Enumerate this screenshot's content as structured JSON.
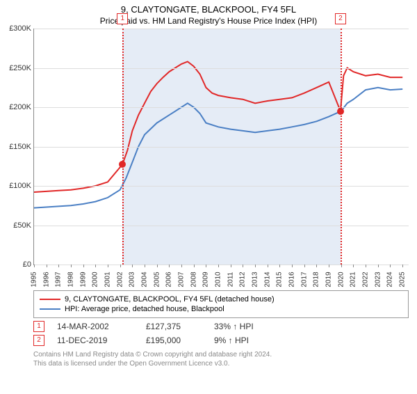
{
  "title": "9, CLAYTONGATE, BLACKPOOL, FY4 5FL",
  "subtitle": "Price paid vs. HM Land Registry's House Price Index (HPI)",
  "chart": {
    "type": "line",
    "x_range": [
      1995,
      2025.5
    ],
    "y_range": [
      0,
      300000
    ],
    "y_ticks": [
      0,
      50000,
      100000,
      150000,
      200000,
      250000,
      300000
    ],
    "y_labels": [
      "£0",
      "£50K",
      "£100K",
      "£150K",
      "£200K",
      "£250K",
      "£300K"
    ],
    "x_ticks": [
      1995,
      1996,
      1997,
      1998,
      1999,
      2000,
      2001,
      2002,
      2003,
      2004,
      2005,
      2006,
      2007,
      2008,
      2009,
      2010,
      2011,
      2012,
      2013,
      2014,
      2015,
      2016,
      2017,
      2018,
      2019,
      2020,
      2021,
      2022,
      2023,
      2024,
      2025
    ],
    "shade_range": [
      2002.2,
      2019.95
    ],
    "shade_color": "rgba(180,200,230,0.35)",
    "background_color": "#ffffff",
    "grid_color": "#dddddd",
    "axis_color": "#888888",
    "series": [
      {
        "name": "9, CLAYTONGATE, BLACKPOOL, FY4 5FL (detached house)",
        "color": "#e12727",
        "width": 2,
        "points": [
          [
            1995,
            92000
          ],
          [
            1996,
            93000
          ],
          [
            1997,
            94000
          ],
          [
            1998,
            95000
          ],
          [
            1999,
            97000
          ],
          [
            2000,
            100000
          ],
          [
            2001,
            105000
          ],
          [
            2002.2,
            127375
          ],
          [
            2002.6,
            145000
          ],
          [
            2003,
            170000
          ],
          [
            2003.5,
            190000
          ],
          [
            2004,
            205000
          ],
          [
            2004.5,
            220000
          ],
          [
            2005,
            230000
          ],
          [
            2005.5,
            238000
          ],
          [
            2006,
            245000
          ],
          [
            2006.5,
            250000
          ],
          [
            2007,
            255000
          ],
          [
            2007.5,
            258000
          ],
          [
            2008,
            252000
          ],
          [
            2008.5,
            242000
          ],
          [
            2009,
            225000
          ],
          [
            2009.5,
            218000
          ],
          [
            2010,
            215000
          ],
          [
            2011,
            212000
          ],
          [
            2012,
            210000
          ],
          [
            2013,
            205000
          ],
          [
            2014,
            208000
          ],
          [
            2015,
            210000
          ],
          [
            2016,
            212000
          ],
          [
            2017,
            218000
          ],
          [
            2018,
            225000
          ],
          [
            2019,
            232000
          ],
          [
            2019.95,
            195000
          ],
          [
            2020.2,
            240000
          ],
          [
            2020.5,
            250000
          ],
          [
            2021,
            245000
          ],
          [
            2022,
            240000
          ],
          [
            2023,
            242000
          ],
          [
            2024,
            238000
          ],
          [
            2025,
            238000
          ]
        ]
      },
      {
        "name": "HPI: Average price, detached house, Blackpool",
        "color": "#4a7fc4",
        "width": 2,
        "points": [
          [
            1995,
            72000
          ],
          [
            1996,
            73000
          ],
          [
            1997,
            74000
          ],
          [
            1998,
            75000
          ],
          [
            1999,
            77000
          ],
          [
            2000,
            80000
          ],
          [
            2001,
            85000
          ],
          [
            2002,
            95000
          ],
          [
            2002.5,
            110000
          ],
          [
            2003,
            130000
          ],
          [
            2003.5,
            150000
          ],
          [
            2004,
            165000
          ],
          [
            2005,
            180000
          ],
          [
            2006,
            190000
          ],
          [
            2007,
            200000
          ],
          [
            2007.5,
            205000
          ],
          [
            2008,
            200000
          ],
          [
            2008.5,
            192000
          ],
          [
            2009,
            180000
          ],
          [
            2010,
            175000
          ],
          [
            2011,
            172000
          ],
          [
            2012,
            170000
          ],
          [
            2013,
            168000
          ],
          [
            2014,
            170000
          ],
          [
            2015,
            172000
          ],
          [
            2016,
            175000
          ],
          [
            2017,
            178000
          ],
          [
            2018,
            182000
          ],
          [
            2019,
            188000
          ],
          [
            2020,
            195000
          ],
          [
            2020.5,
            205000
          ],
          [
            2021,
            210000
          ],
          [
            2022,
            222000
          ],
          [
            2023,
            225000
          ],
          [
            2024,
            222000
          ],
          [
            2025,
            223000
          ]
        ]
      }
    ],
    "markers": [
      {
        "id": "1",
        "x": 2002.2,
        "y": 127375
      },
      {
        "id": "2",
        "x": 2019.95,
        "y": 195000
      }
    ]
  },
  "legend": {
    "items": [
      {
        "color": "#e12727",
        "label": "9, CLAYTONGATE, BLACKPOOL, FY4 5FL (detached house)"
      },
      {
        "color": "#4a7fc4",
        "label": "HPI: Average price, detached house, Blackpool"
      }
    ]
  },
  "transactions": [
    {
      "id": "1",
      "date": "14-MAR-2002",
      "price": "£127,375",
      "pct": "33% ↑ HPI"
    },
    {
      "id": "2",
      "date": "11-DEC-2019",
      "price": "£195,000",
      "pct": "9% ↑ HPI"
    }
  ],
  "footer_line1": "Contains HM Land Registry data © Crown copyright and database right 2024.",
  "footer_line2": "This data is licensed under the Open Government Licence v3.0."
}
